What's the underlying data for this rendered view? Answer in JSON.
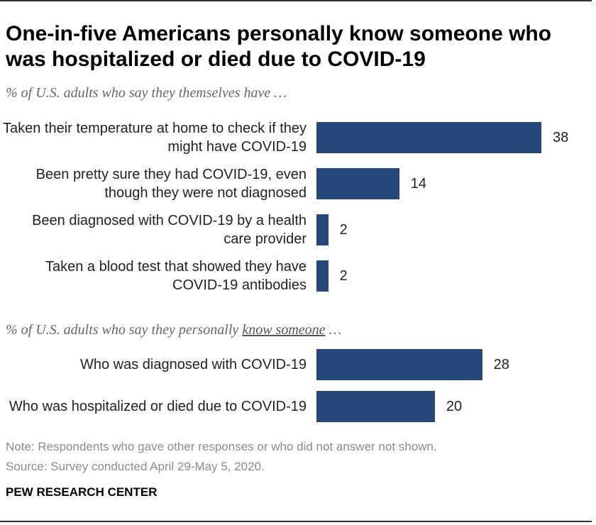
{
  "title": "One-in-five Americans personally know someone who was hospitalized or died due to COVID-19",
  "colors": {
    "bar": "#25477a"
  },
  "chart_data": [
    {
      "type": "bar",
      "orientation": "horizontal",
      "subtitle": "% of U.S. adults who say they themselves have …",
      "categories": [
        "Taken their temperature at home to check if they might have COVID-19",
        "Been pretty sure they had COVID-19, even though they were not diagnosed",
        "Been diagnosed with COVID-19 by a health care provider",
        "Taken a blood test that showed they have COVID-19 antibodies"
      ],
      "values": [
        38,
        14,
        2,
        2
      ],
      "value_labels": [
        "38",
        "14",
        "2",
        "2"
      ]
    },
    {
      "type": "bar",
      "orientation": "horizontal",
      "subtitle_parts": [
        "% of U.S. adults who say they personally ",
        "know someone",
        " …"
      ],
      "categories": [
        "Who was diagnosed with COVID-19",
        "Who was hospitalized or died due to COVID-19"
      ],
      "values": [
        28,
        20
      ],
      "value_labels": [
        "28",
        "20"
      ]
    }
  ],
  "note": "Note: Respondents who gave other responses or who did not answer not shown.",
  "source": "Source: Survey conducted April 29-May 5, 2020.",
  "brand": "PEW RESEARCH CENTER"
}
